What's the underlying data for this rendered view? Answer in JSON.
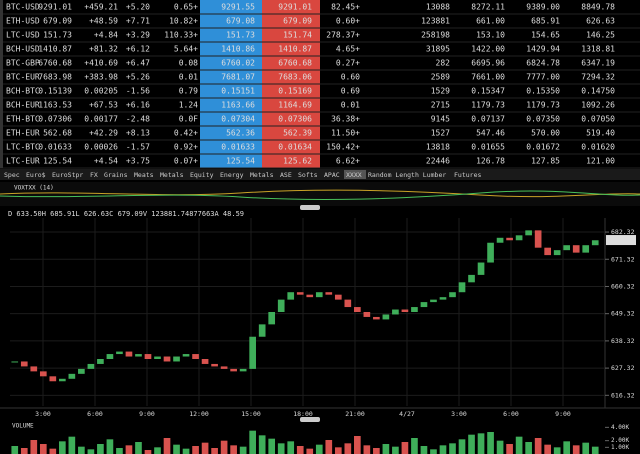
{
  "table": {
    "rows": [
      [
        "BTC-USD",
        "9291.01",
        "+459.21",
        "+5.20",
        "0.65+",
        "9291.55",
        "9291.01",
        "82.45+",
        "13088",
        "8272.11",
        "9389.00",
        "8849.78"
      ],
      [
        "ETH-USD",
        "679.09",
        "+48.59",
        "+7.71",
        "10.82+",
        "679.08",
        "679.09",
        "0.60+",
        "123881",
        "661.00",
        "685.91",
        "626.63"
      ],
      [
        "LTC-USD",
        "151.73",
        "+4.84",
        "+3.29",
        "110.33+",
        "151.73",
        "151.74",
        "278.37+",
        "258198",
        "153.10",
        "154.65",
        "146.25"
      ],
      [
        "BCH-USD",
        "1410.87",
        "+81.32",
        "+6.12",
        "5.64+",
        "1410.86",
        "1410.87",
        "4.65+",
        "31895",
        "1422.00",
        "1429.94",
        "1318.81"
      ],
      [
        "BTC-GBP",
        "6760.68",
        "+410.69",
        "+6.47",
        "0.08",
        "6760.02",
        "6760.68",
        "0.27+",
        "282",
        "6695.96",
        "6824.78",
        "6347.19"
      ],
      [
        "BTC-EUR",
        "7683.98",
        "+383.98",
        "+5.26",
        "0.01",
        "7681.07",
        "7683.06",
        "0.60",
        "2589",
        "7661.00",
        "7777.00",
        "7294.32"
      ],
      [
        "BCH-BTC",
        "0.15139",
        "0.00205",
        "-1.56",
        "0.79",
        "0.15151",
        "0.15169",
        "0.69",
        "1529",
        "0.15347",
        "0.15350",
        "0.14750"
      ],
      [
        "BCH-EUR",
        "1163.53",
        "+67.53",
        "+6.16",
        "1.24",
        "1163.66",
        "1164.69",
        "0.01",
        "2715",
        "1179.73",
        "1179.73",
        "1092.26"
      ],
      [
        "ETH-BTC",
        "0.07306",
        "0.00177",
        "-2.48",
        "0.0F",
        "0.07304",
        "0.07306",
        "36.38+",
        "9145",
        "0.07137",
        "0.07350",
        "0.07050"
      ],
      [
        "ETH-EUR",
        "562.68",
        "+42.29",
        "+8.13",
        "0.42+",
        "562.36",
        "562.39",
        "11.50+",
        "1527",
        "547.46",
        "570.00",
        "519.40"
      ],
      [
        "LTC-BTC",
        "0.01633",
        "0.00026",
        "-1.57",
        "0.92+",
        "0.01633",
        "0.01634",
        "150.42+",
        "13818",
        "0.01655",
        "0.01672",
        "0.01620"
      ],
      [
        "LTC-EUR",
        "125.54",
        "+4.54",
        "+3.75",
        "0.07+",
        "125.54",
        "125.62",
        "6.62+",
        "22446",
        "126.78",
        "127.85",
        "121.00"
      ]
    ]
  },
  "tabs": [
    "Spec",
    "Euro$",
    "EuroStpr",
    "FX",
    "Grains",
    "Meats",
    "Metals",
    "Equity",
    "Energy",
    "Metals",
    "ASE",
    "Softs",
    "APAC",
    "XXXX",
    "Random Length Lumber",
    "Futures"
  ],
  "indicator_label": "VOXTXX (14)",
  "chart_data": {
    "type": "candlestick",
    "header": "D 633.50H 685.91L 626.63C 679.09V 123881.74877663A 48.59",
    "close": [
      630,
      628,
      626,
      624,
      622,
      623,
      625,
      627,
      629,
      631,
      633,
      634,
      632,
      633,
      631,
      632,
      630,
      632,
      633,
      631,
      629,
      628,
      627,
      626,
      627,
      640,
      645,
      650,
      655,
      658,
      657,
      656,
      658,
      657,
      655,
      652,
      650,
      648,
      647,
      649,
      651,
      650,
      652,
      654,
      655,
      656,
      658,
      662,
      665,
      670,
      678,
      680,
      679,
      681,
      683,
      676,
      673,
      675,
      677,
      674,
      677,
      679
    ],
    "up_color": "#3fae5a",
    "down_color": "#d9534f",
    "ylim": [
      612,
      688
    ],
    "yticks": [
      616.32,
      627.32,
      638.32,
      649.32,
      660.32,
      671.32,
      682.32
    ],
    "last_price": 679.09,
    "xticks": [
      "3:00",
      "6:00",
      "9:00",
      "12:00",
      "15:00",
      "18:00",
      "21:00",
      "4/27",
      "3:00",
      "6:00",
      "9:00"
    ],
    "volume": {
      "label": "VOLUME",
      "values": [
        1200,
        900,
        2100,
        1500,
        800,
        1900,
        2600,
        1100,
        700,
        1500,
        2200,
        900,
        1300,
        1800,
        600,
        1000,
        2400,
        1400,
        800,
        1200,
        1700,
        900,
        2000,
        1300,
        1100,
        3500,
        2800,
        2300,
        1600,
        1900,
        1200,
        800,
        1400,
        2100,
        1000,
        1600,
        2700,
        1300,
        900,
        1500,
        1100,
        1800,
        2400,
        1200,
        700,
        1300,
        1600,
        2200,
        2900,
        3100,
        3300,
        2000,
        1500,
        2600,
        1800,
        2400,
        1400,
        1000,
        1900,
        1300,
        1700,
        1100
      ],
      "ylim": [
        0,
        4500
      ],
      "yticks": [
        {
          "value": 1000,
          "label": "1.00K"
        },
        {
          "value": 2000,
          "label": "2.00K"
        },
        {
          "value": 4000,
          "label": "4.00K"
        }
      ]
    }
  }
}
